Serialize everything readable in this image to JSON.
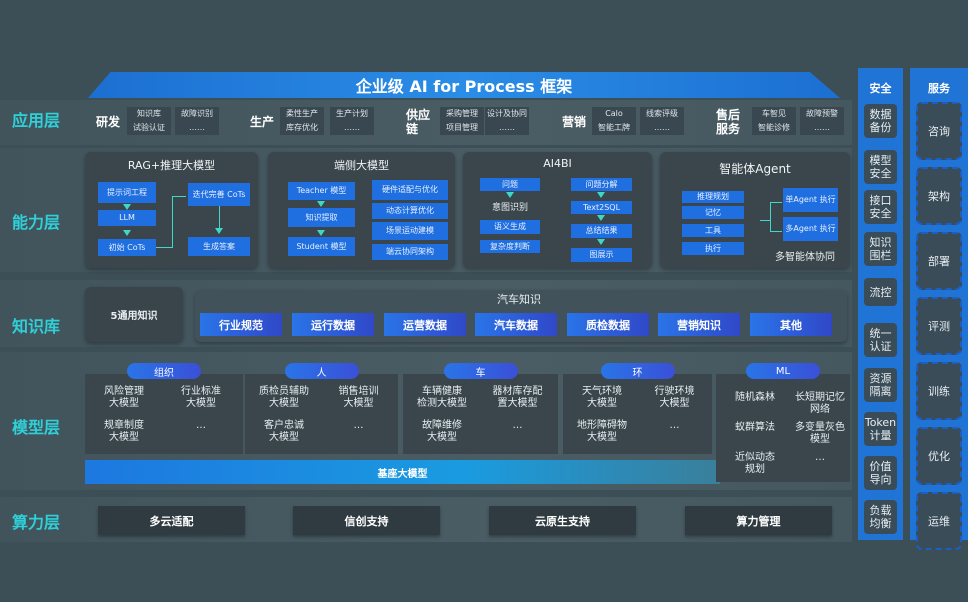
{
  "title": "企业级 AI for Process 框架",
  "layers": {
    "app": "应用层",
    "capability": "能力层",
    "knowledge": "知识库",
    "model": "模型层",
    "compute": "算力层"
  },
  "app": [
    {
      "name": "研发",
      "items": [
        "知识库",
        "故障识别",
        "试验认证",
        "……"
      ]
    },
    {
      "name": "生产",
      "items": [
        "柔性生产",
        "生产计划",
        "库存优化",
        "……"
      ]
    },
    {
      "name": "供应链",
      "items": [
        "采购管理",
        "设计及协同",
        "项目管理",
        "……"
      ]
    },
    {
      "name": "营销",
      "items": [
        "Calo",
        "线索评级",
        "智能工牌",
        "……"
      ]
    },
    {
      "name": "售后服务",
      "items": [
        "车智见",
        "故障预警",
        "智能诊修",
        "……"
      ]
    }
  ],
  "capability": {
    "rag": {
      "title": "RAG+推理大模型",
      "items": [
        "提示词工程",
        "LLM",
        "初始 CoTs",
        "迭代完善 CoTs",
        "生成答案"
      ]
    },
    "edge": {
      "title": "端侧大模型",
      "items": [
        "Teacher 模型",
        "知识提取",
        "Student 模型",
        "硬件适配与优化",
        "动态计算优化",
        "场景运动建模",
        "端云协同架构"
      ]
    },
    "ai4bi": {
      "title": "AI4BI",
      "items": [
        "问题",
        "意图识别",
        "语义生成",
        "复杂度判断",
        "问题分解",
        "Text2SQL",
        "总结结果",
        "图展示"
      ]
    },
    "agent": {
      "title": "智能体Agent",
      "items": [
        "推理规划",
        "记忆",
        "工具",
        "执行",
        "单Agent 执行",
        "多Agent 执行"
      ],
      "footer": "多智能体协同"
    }
  },
  "knowledge": {
    "general": "5通用知识",
    "auto_title": "汽车知识",
    "items": [
      "行业规范",
      "运行数据",
      "运营数据",
      "汽车数据",
      "质检数据",
      "营销知识",
      "其他"
    ]
  },
  "model": {
    "groups": [
      {
        "name": "组织",
        "items": [
          "风险管理\n大模型",
          "行业标准\n大模型",
          "规章制度\n大模型",
          "…"
        ]
      },
      {
        "name": "人",
        "items": [
          "质检员辅助\n大模型",
          "销售培训\n大模型",
          "客户忠诚\n大模型",
          "…"
        ]
      },
      {
        "name": "车",
        "items": [
          "车辆健康\n检测大模型",
          "器材库存配\n置大模型",
          "故障维修\n大模型",
          "…"
        ]
      },
      {
        "name": "环",
        "items": [
          "天气环境\n大模型",
          "行驶环境\n大模型",
          "地形障碍物\n大模型",
          "…"
        ]
      },
      {
        "name": "ML",
        "items": [
          "随机森林",
          "长短期记忆\n网络",
          "蚁群算法",
          "多变量灰色\n模型",
          "近似动态\n规划",
          "…"
        ]
      }
    ],
    "base": "基座大模型"
  },
  "compute": [
    "多云适配",
    "信创支持",
    "云原生支持",
    "算力管理"
  ],
  "security": {
    "title": "安全",
    "items": [
      "数据\n备份",
      "模型\n安全",
      "接口\n安全",
      "知识\n围栏",
      "流控",
      "统一\n认证",
      "资源\n隔离",
      "Token\n计量",
      "价值\n导向",
      "负载\n均衡"
    ]
  },
  "service": {
    "title": "服务",
    "items": [
      "咨询",
      "架构",
      "部署",
      "评测",
      "训练",
      "优化",
      "运维"
    ]
  },
  "colors": {
    "accent": "#1f74d6",
    "label": "#2fd0d8",
    "button": "#1f6fe0",
    "background": "#3c4e56"
  }
}
